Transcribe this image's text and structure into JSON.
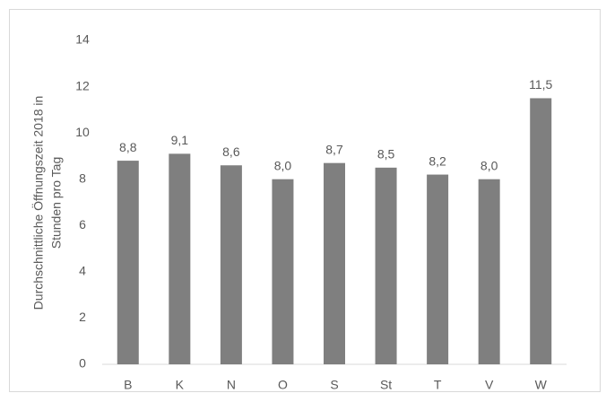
{
  "chart_data": {
    "type": "bar",
    "ylabel": [
      "Durchschnittliche Öffnungszeit 2018 in",
      "Stunden pro Tag"
    ],
    "categories": [
      "B",
      "K",
      "N",
      "O",
      "S",
      "St",
      "T",
      "V",
      "W"
    ],
    "values": [
      8.8,
      9.1,
      8.6,
      8.0,
      8.7,
      8.5,
      8.2,
      8.0,
      11.5
    ],
    "value_labels": [
      "8,8",
      "9,1",
      "8,6",
      "8,0",
      "8,7",
      "8,5",
      "8,2",
      "8,0",
      "11,5"
    ],
    "color": "#7f7f7f",
    "ylim": [
      0,
      14
    ],
    "yticks": [
      0,
      2,
      4,
      6,
      8,
      10,
      12,
      14
    ],
    "grid": false
  }
}
